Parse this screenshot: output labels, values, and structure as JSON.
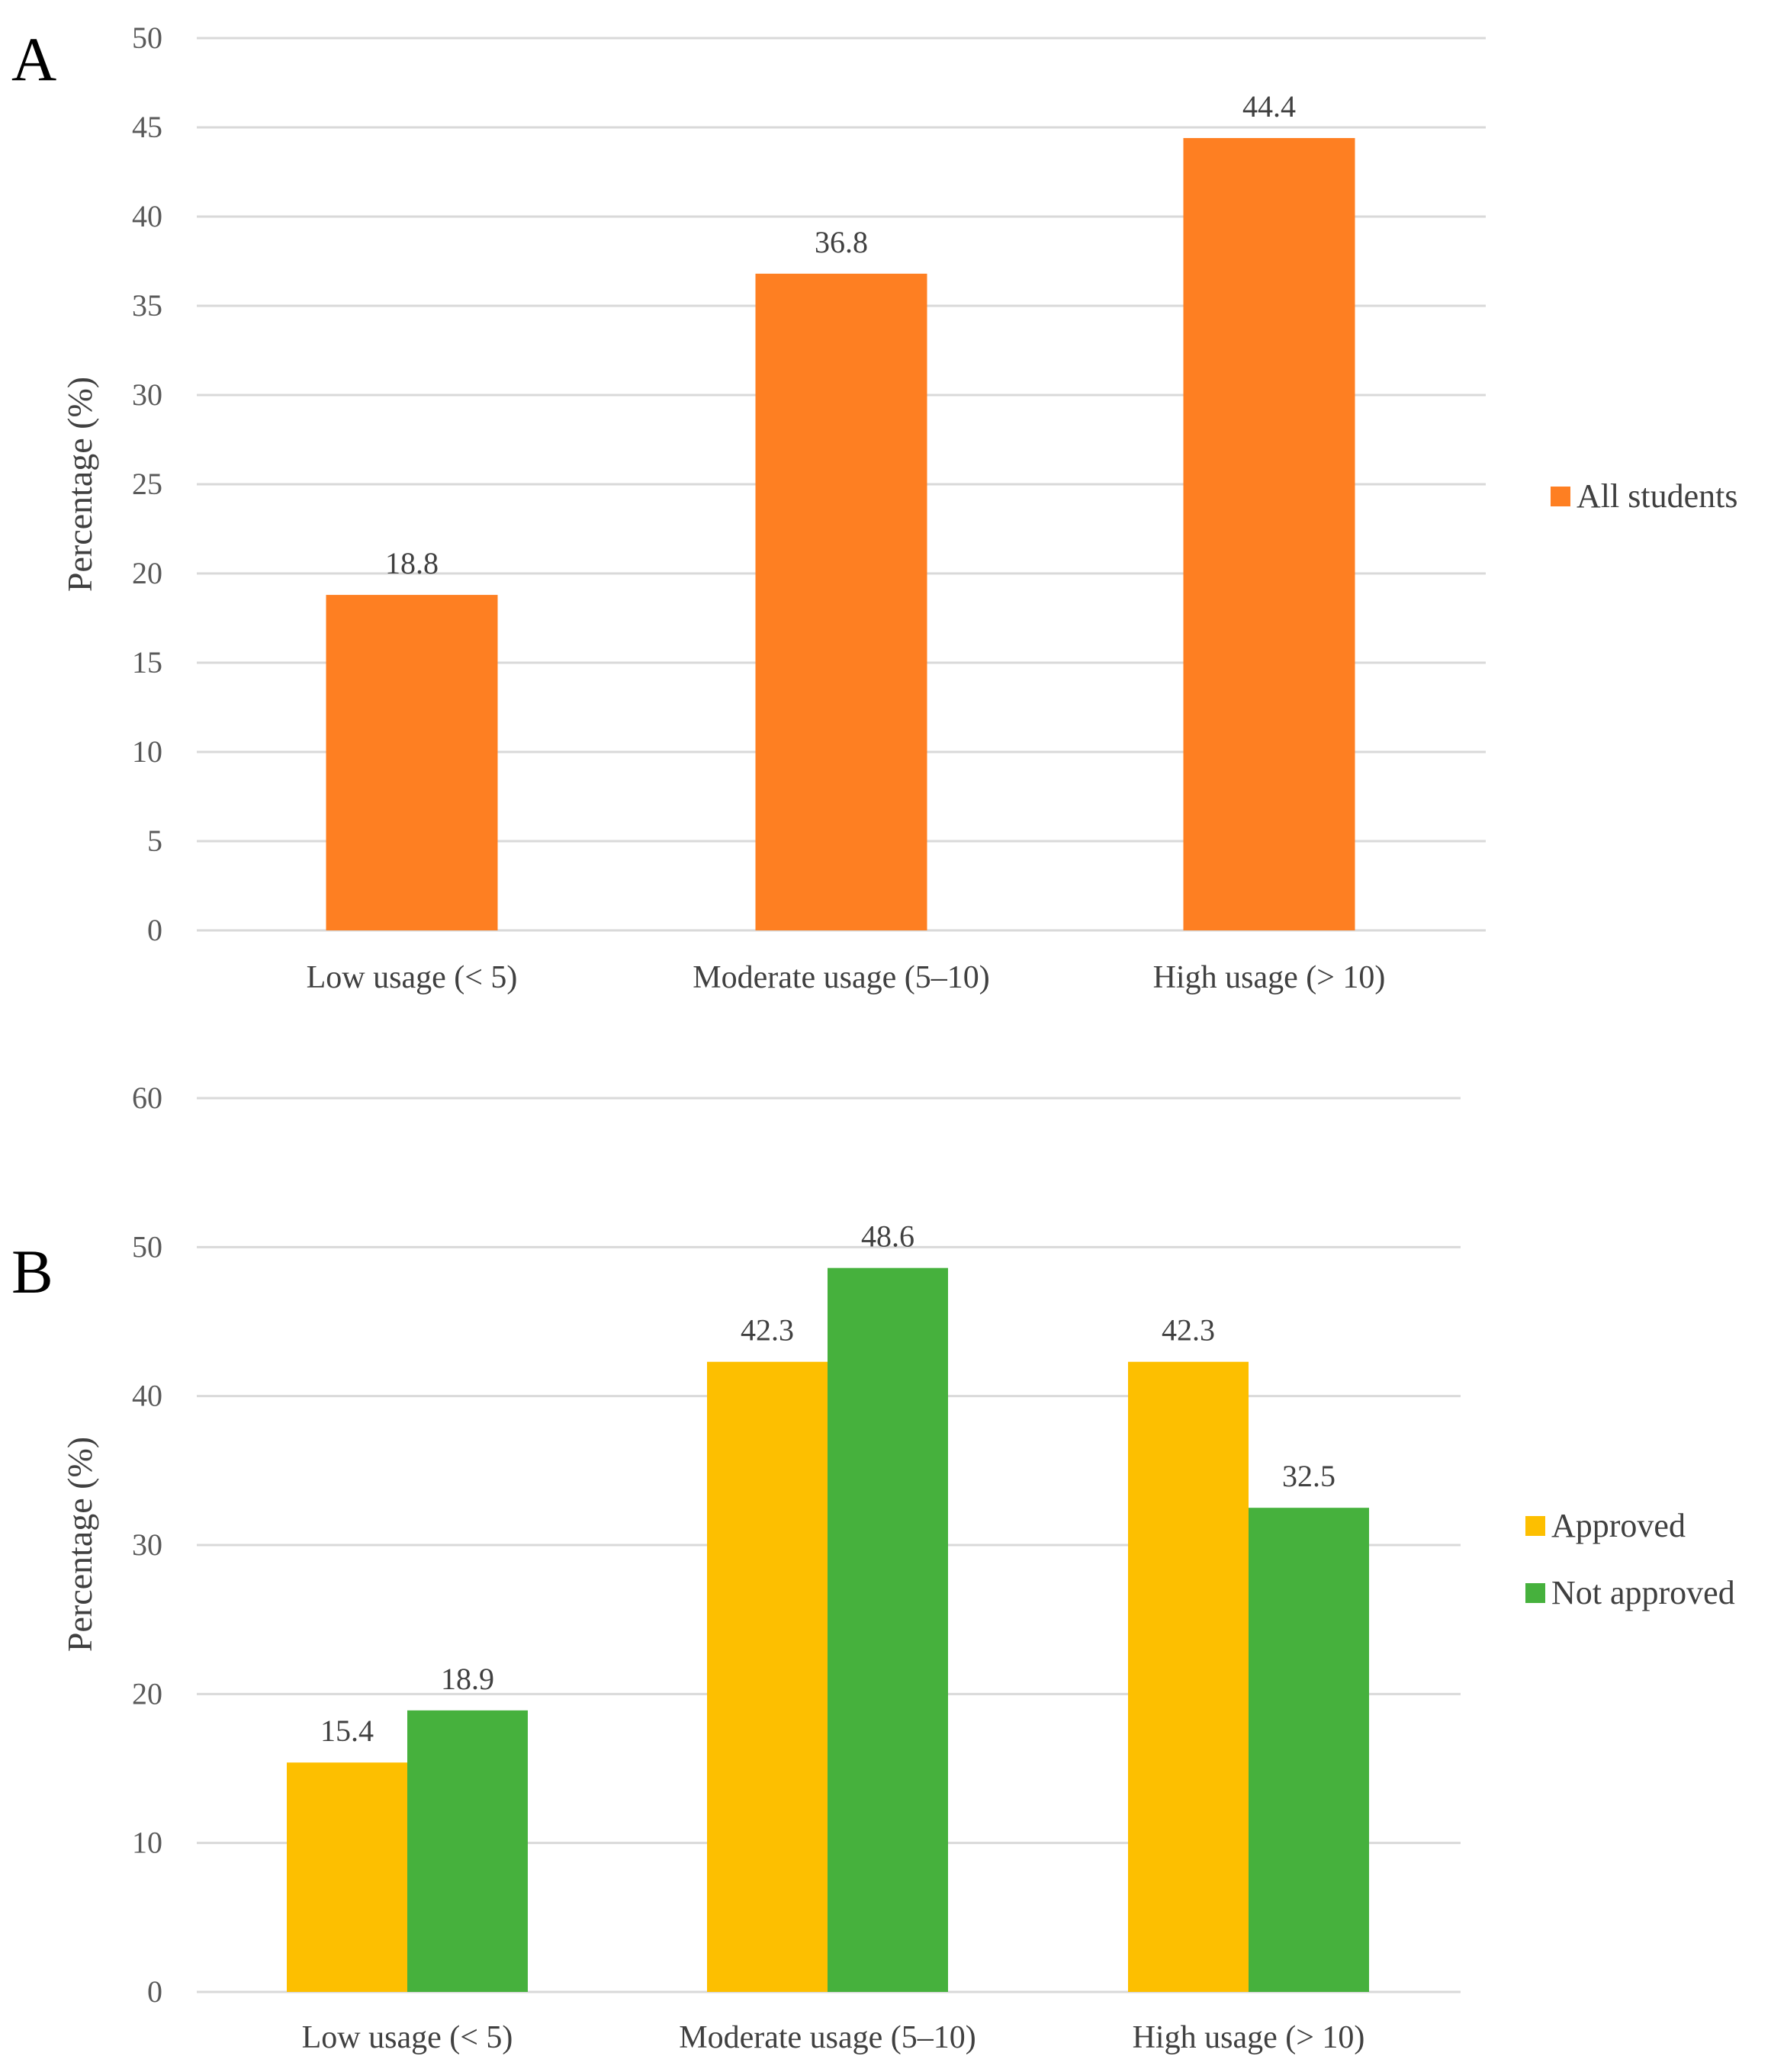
{
  "chart_data": [
    {
      "panel_label": "A",
      "type": "bar",
      "ylabel": "Percentage (%)",
      "ylim": [
        0,
        50
      ],
      "yticks": [
        0,
        5,
        10,
        15,
        20,
        25,
        30,
        35,
        40,
        45,
        50
      ],
      "categories": [
        "Low usage (< 5)",
        "Moderate usage (5–10)",
        "High usage (> 10)"
      ],
      "series": [
        {
          "name": "All students",
          "color": "#fe7f22",
          "values": [
            18.8,
            36.8,
            44.4
          ],
          "labels": [
            "18.8",
            "36.8",
            "44.4"
          ]
        }
      ],
      "legend_position": "right",
      "grid": true
    },
    {
      "panel_label": "B",
      "type": "bar",
      "ylabel": "Percentage (%)",
      "ylim": [
        0,
        60
      ],
      "yticks": [
        0,
        10,
        20,
        30,
        40,
        50,
        60
      ],
      "categories": [
        "Low usage (< 5)",
        "Moderate usage (5–10)",
        "High usage (> 10)"
      ],
      "series": [
        {
          "name": "Approved",
          "color": "#fdbf00",
          "values": [
            15.4,
            42.3,
            42.3
          ],
          "labels": [
            "15.4",
            "42.3",
            "42.3"
          ]
        },
        {
          "name": "Not approved",
          "color": "#46b13d",
          "values": [
            18.9,
            48.6,
            32.5
          ],
          "labels": [
            "18.9",
            "48.6",
            "32.5"
          ]
        }
      ],
      "legend_position": "right",
      "grid": true
    }
  ]
}
